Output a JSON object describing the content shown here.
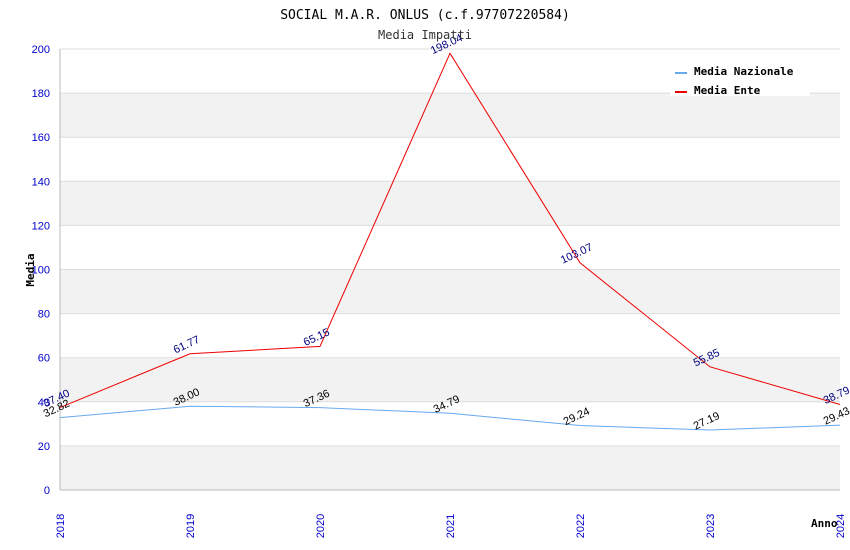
{
  "chart_data": {
    "type": "line",
    "title": "SOCIAL M.A.R. ONLUS (c.f.97707220584)",
    "subtitle": "Media Impatti",
    "xlabel": "Anno",
    "ylabel": "Media",
    "x": [
      "2018",
      "2019",
      "2020",
      "2021",
      "2022",
      "2023",
      "2024"
    ],
    "ylim": [
      0,
      200
    ],
    "yticks": [
      0,
      20,
      40,
      60,
      80,
      100,
      120,
      140,
      160,
      180,
      200
    ],
    "grid": true,
    "legend_position": "top-right",
    "series": [
      {
        "name": "Media Nazionale",
        "color": "#66aaee",
        "values": [
          32.82,
          38.0,
          37.36,
          34.79,
          29.24,
          27.19,
          29.43
        ],
        "labels": [
          "32.82",
          "38.00",
          "37.36",
          "34.79",
          "29.24",
          "27.19",
          "29.43"
        ]
      },
      {
        "name": "Media Ente",
        "color": "#ee0000",
        "values": [
          37.4,
          61.77,
          65.15,
          198.04,
          103.07,
          55.85,
          38.79
        ],
        "labels": [
          "37.40",
          "61.77",
          "65.15",
          "198.04",
          "103.07",
          "55.85",
          "38.79"
        ]
      }
    ]
  }
}
